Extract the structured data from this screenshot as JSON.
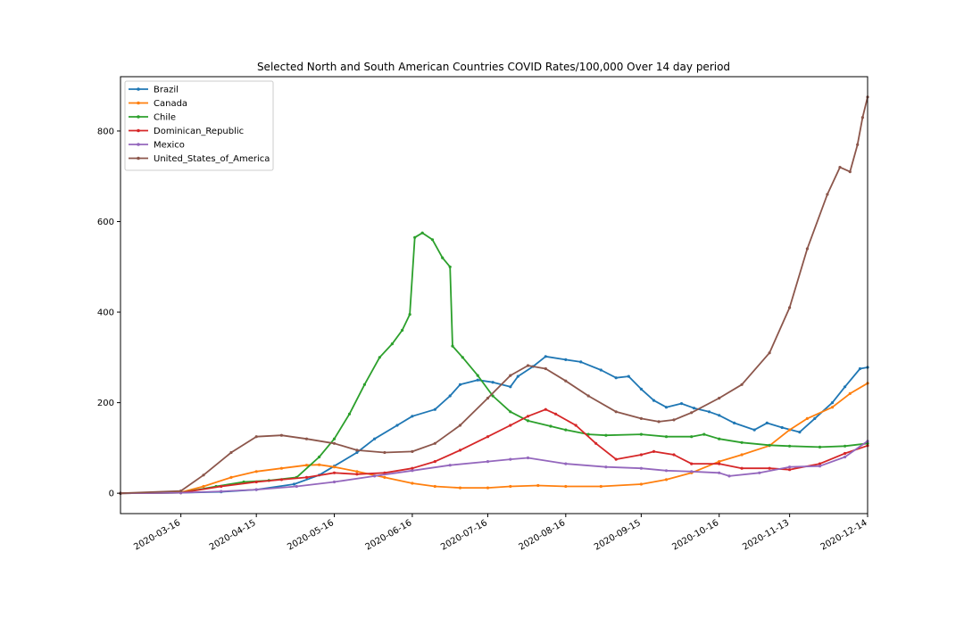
{
  "chart_data": {
    "type": "line",
    "title": "Selected North and South American Countries COVID Rates/100,000 Over 14 day period",
    "xlabel": "",
    "ylabel": "",
    "x_start": "2020-02-21",
    "x_end": "2020-12-14",
    "ylim": [
      -45,
      920
    ],
    "y_ticks": [
      0,
      200,
      400,
      600,
      800
    ],
    "x_ticks": [
      "2020-03-16",
      "2020-04-15",
      "2020-05-16",
      "2020-06-16",
      "2020-07-16",
      "2020-08-16",
      "2020-09-15",
      "2020-10-16",
      "2020-11-13",
      "2020-12-14"
    ],
    "grid": false,
    "legend_position": "upper-left",
    "series": [
      {
        "name": "Brazil",
        "color": "#1f77b4",
        "points": [
          [
            "2020-02-21",
            0
          ],
          [
            "2020-03-16",
            1
          ],
          [
            "2020-04-01",
            3
          ],
          [
            "2020-04-15",
            8
          ],
          [
            "2020-04-30",
            20
          ],
          [
            "2020-05-10",
            40
          ],
          [
            "2020-05-16",
            60
          ],
          [
            "2020-05-25",
            90
          ],
          [
            "2020-06-01",
            120
          ],
          [
            "2020-06-10",
            150
          ],
          [
            "2020-06-16",
            170
          ],
          [
            "2020-06-25",
            185
          ],
          [
            "2020-07-01",
            215
          ],
          [
            "2020-07-05",
            240
          ],
          [
            "2020-07-12",
            250
          ],
          [
            "2020-07-18",
            245
          ],
          [
            "2020-07-25",
            235
          ],
          [
            "2020-07-28",
            258
          ],
          [
            "2020-08-03",
            280
          ],
          [
            "2020-08-08",
            302
          ],
          [
            "2020-08-16",
            295
          ],
          [
            "2020-08-22",
            290
          ],
          [
            "2020-08-30",
            272
          ],
          [
            "2020-09-05",
            255
          ],
          [
            "2020-09-10",
            258
          ],
          [
            "2020-09-15",
            230
          ],
          [
            "2020-09-20",
            205
          ],
          [
            "2020-09-25",
            190
          ],
          [
            "2020-10-01",
            198
          ],
          [
            "2020-10-06",
            188
          ],
          [
            "2020-10-12",
            180
          ],
          [
            "2020-10-16",
            172
          ],
          [
            "2020-10-22",
            155
          ],
          [
            "2020-10-30",
            140
          ],
          [
            "2020-11-04",
            155
          ],
          [
            "2020-11-10",
            145
          ],
          [
            "2020-11-17",
            135
          ],
          [
            "2020-11-23",
            165
          ],
          [
            "2020-11-30",
            200
          ],
          [
            "2020-12-05",
            235
          ],
          [
            "2020-12-11",
            275
          ],
          [
            "2020-12-14",
            278
          ]
        ]
      },
      {
        "name": "Canada",
        "color": "#ff7f0e",
        "points": [
          [
            "2020-02-21",
            0
          ],
          [
            "2020-03-16",
            2
          ],
          [
            "2020-03-25",
            15
          ],
          [
            "2020-04-05",
            35
          ],
          [
            "2020-04-15",
            48
          ],
          [
            "2020-04-25",
            55
          ],
          [
            "2020-05-05",
            62
          ],
          [
            "2020-05-10",
            63
          ],
          [
            "2020-05-16",
            58
          ],
          [
            "2020-05-25",
            48
          ],
          [
            "2020-06-05",
            35
          ],
          [
            "2020-06-16",
            22
          ],
          [
            "2020-06-25",
            15
          ],
          [
            "2020-07-05",
            12
          ],
          [
            "2020-07-16",
            12
          ],
          [
            "2020-07-25",
            15
          ],
          [
            "2020-08-05",
            17
          ],
          [
            "2020-08-16",
            15
          ],
          [
            "2020-08-30",
            15
          ],
          [
            "2020-09-15",
            20
          ],
          [
            "2020-09-25",
            30
          ],
          [
            "2020-10-05",
            45
          ],
          [
            "2020-10-16",
            70
          ],
          [
            "2020-10-25",
            85
          ],
          [
            "2020-11-05",
            105
          ],
          [
            "2020-11-13",
            140
          ],
          [
            "2020-11-20",
            165
          ],
          [
            "2020-11-30",
            190
          ],
          [
            "2020-12-07",
            220
          ],
          [
            "2020-12-14",
            243
          ]
        ]
      },
      {
        "name": "Chile",
        "color": "#2ca02c",
        "points": [
          [
            "2020-02-21",
            0
          ],
          [
            "2020-03-16",
            1
          ],
          [
            "2020-03-30",
            15
          ],
          [
            "2020-04-10",
            25
          ],
          [
            "2020-04-20",
            28
          ],
          [
            "2020-05-01",
            35
          ],
          [
            "2020-05-10",
            80
          ],
          [
            "2020-05-16",
            120
          ],
          [
            "2020-05-22",
            175
          ],
          [
            "2020-05-28",
            240
          ],
          [
            "2020-06-03",
            300
          ],
          [
            "2020-06-08",
            330
          ],
          [
            "2020-06-12",
            360
          ],
          [
            "2020-06-15",
            395
          ],
          [
            "2020-06-17",
            565
          ],
          [
            "2020-06-20",
            575
          ],
          [
            "2020-06-24",
            560
          ],
          [
            "2020-06-28",
            520
          ],
          [
            "2020-07-01",
            500
          ],
          [
            "2020-07-02",
            325
          ],
          [
            "2020-07-06",
            300
          ],
          [
            "2020-07-12",
            260
          ],
          [
            "2020-07-18",
            215
          ],
          [
            "2020-07-25",
            180
          ],
          [
            "2020-08-01",
            160
          ],
          [
            "2020-08-10",
            148
          ],
          [
            "2020-08-16",
            140
          ],
          [
            "2020-08-25",
            130
          ],
          [
            "2020-09-01",
            128
          ],
          [
            "2020-09-15",
            130
          ],
          [
            "2020-09-25",
            125
          ],
          [
            "2020-10-05",
            125
          ],
          [
            "2020-10-10",
            130
          ],
          [
            "2020-10-16",
            120
          ],
          [
            "2020-10-25",
            112
          ],
          [
            "2020-11-05",
            106
          ],
          [
            "2020-11-13",
            104
          ],
          [
            "2020-11-25",
            102
          ],
          [
            "2020-12-05",
            104
          ],
          [
            "2020-12-14",
            110
          ]
        ]
      },
      {
        "name": "Dominican_Republic",
        "color": "#d62728",
        "points": [
          [
            "2020-02-21",
            0
          ],
          [
            "2020-03-16",
            1
          ],
          [
            "2020-04-01",
            15
          ],
          [
            "2020-04-15",
            25
          ],
          [
            "2020-04-25",
            30
          ],
          [
            "2020-05-05",
            35
          ],
          [
            "2020-05-16",
            45
          ],
          [
            "2020-05-25",
            42
          ],
          [
            "2020-06-05",
            45
          ],
          [
            "2020-06-16",
            55
          ],
          [
            "2020-06-25",
            70
          ],
          [
            "2020-07-05",
            95
          ],
          [
            "2020-07-16",
            125
          ],
          [
            "2020-07-25",
            150
          ],
          [
            "2020-08-01",
            170
          ],
          [
            "2020-08-08",
            185
          ],
          [
            "2020-08-12",
            175
          ],
          [
            "2020-08-20",
            150
          ],
          [
            "2020-08-28",
            110
          ],
          [
            "2020-09-05",
            75
          ],
          [
            "2020-09-15",
            85
          ],
          [
            "2020-09-20",
            92
          ],
          [
            "2020-09-28",
            85
          ],
          [
            "2020-10-05",
            65
          ],
          [
            "2020-10-16",
            65
          ],
          [
            "2020-10-25",
            55
          ],
          [
            "2020-11-05",
            55
          ],
          [
            "2020-11-13",
            52
          ],
          [
            "2020-11-25",
            65
          ],
          [
            "2020-12-05",
            88
          ],
          [
            "2020-12-14",
            105
          ]
        ]
      },
      {
        "name": "Mexico",
        "color": "#9467bd",
        "points": [
          [
            "2020-02-21",
            0
          ],
          [
            "2020-03-16",
            1
          ],
          [
            "2020-04-01",
            4
          ],
          [
            "2020-04-15",
            8
          ],
          [
            "2020-05-01",
            15
          ],
          [
            "2020-05-16",
            25
          ],
          [
            "2020-06-01",
            38
          ],
          [
            "2020-06-16",
            50
          ],
          [
            "2020-07-01",
            62
          ],
          [
            "2020-07-16",
            70
          ],
          [
            "2020-07-25",
            75
          ],
          [
            "2020-08-01",
            78
          ],
          [
            "2020-08-16",
            65
          ],
          [
            "2020-09-01",
            58
          ],
          [
            "2020-09-15",
            55
          ],
          [
            "2020-09-25",
            50
          ],
          [
            "2020-10-05",
            48
          ],
          [
            "2020-10-16",
            45
          ],
          [
            "2020-10-20",
            38
          ],
          [
            "2020-11-01",
            45
          ],
          [
            "2020-11-13",
            58
          ],
          [
            "2020-11-25",
            60
          ],
          [
            "2020-12-05",
            80
          ],
          [
            "2020-12-14",
            115
          ]
        ]
      },
      {
        "name": "United_States_of_America",
        "color": "#8c564b",
        "points": [
          [
            "2020-02-21",
            0
          ],
          [
            "2020-03-16",
            5
          ],
          [
            "2020-03-25",
            40
          ],
          [
            "2020-04-05",
            90
          ],
          [
            "2020-04-15",
            125
          ],
          [
            "2020-04-25",
            128
          ],
          [
            "2020-05-05",
            120
          ],
          [
            "2020-05-16",
            110
          ],
          [
            "2020-05-25",
            95
          ],
          [
            "2020-06-05",
            90
          ],
          [
            "2020-06-16",
            92
          ],
          [
            "2020-06-25",
            110
          ],
          [
            "2020-07-05",
            150
          ],
          [
            "2020-07-16",
            210
          ],
          [
            "2020-07-25",
            260
          ],
          [
            "2020-08-01",
            282
          ],
          [
            "2020-08-08",
            275
          ],
          [
            "2020-08-16",
            248
          ],
          [
            "2020-08-25",
            215
          ],
          [
            "2020-09-05",
            180
          ],
          [
            "2020-09-15",
            165
          ],
          [
            "2020-09-22",
            158
          ],
          [
            "2020-09-28",
            162
          ],
          [
            "2020-10-05",
            178
          ],
          [
            "2020-10-16",
            210
          ],
          [
            "2020-10-25",
            240
          ],
          [
            "2020-11-05",
            310
          ],
          [
            "2020-11-13",
            410
          ],
          [
            "2020-11-20",
            540
          ],
          [
            "2020-11-28",
            660
          ],
          [
            "2020-12-03",
            720
          ],
          [
            "2020-12-07",
            710
          ],
          [
            "2020-12-10",
            770
          ],
          [
            "2020-12-12",
            830
          ],
          [
            "2020-12-14",
            875
          ]
        ]
      }
    ]
  }
}
